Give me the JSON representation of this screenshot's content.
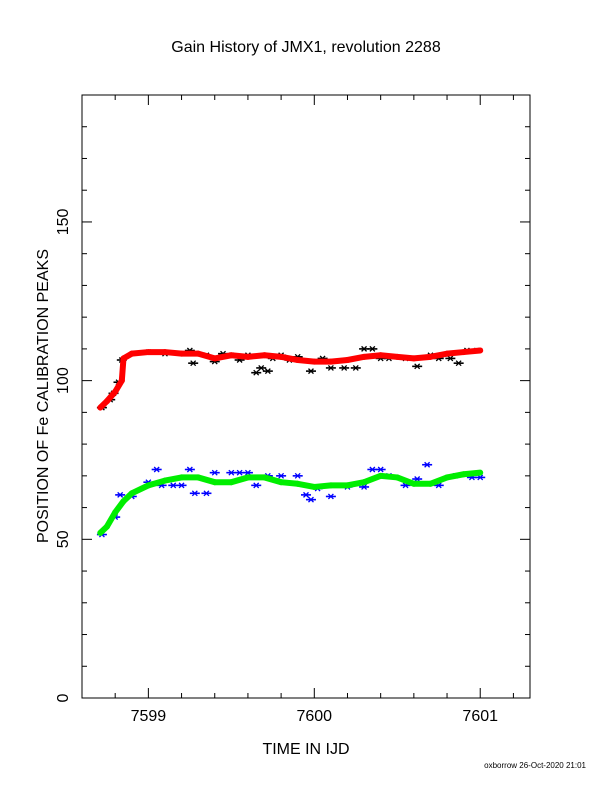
{
  "chart_data": {
    "type": "scatter",
    "title": "Gain History of JMX1, revolution 2288",
    "xlabel": "TIME IN IJD",
    "ylabel": "POSITION OF Fe CALIBRATION PEAKS",
    "xlim": [
      7598.6,
      7601.3
    ],
    "ylim": [
      0,
      190
    ],
    "x_ticks": [
      7599,
      7600,
      7601
    ],
    "x_tick_labels": [
      "7599",
      "7600",
      "7601"
    ],
    "y_ticks": [
      0,
      50,
      100,
      150
    ],
    "y_tick_labels": [
      "0",
      "50",
      "100",
      "150"
    ],
    "grid": false,
    "legend": "none",
    "series": [
      {
        "color": "#000000",
        "marker": "x",
        "points": [
          [
            7598.72,
            91.5
          ],
          [
            7598.77,
            94
          ],
          [
            7598.79,
            96
          ],
          [
            7598.82,
            99.5
          ],
          [
            7598.84,
            106.5
          ],
          [
            7599.0,
            109
          ],
          [
            7599.1,
            108.5
          ],
          [
            7599.25,
            109.5
          ],
          [
            7599.27,
            105.5
          ],
          [
            7599.35,
            108
          ],
          [
            7599.4,
            106
          ],
          [
            7599.45,
            108.5
          ],
          [
            7599.5,
            108
          ],
          [
            7599.55,
            106.5
          ],
          [
            7599.6,
            108
          ],
          [
            7599.65,
            102.5
          ],
          [
            7599.68,
            104
          ],
          [
            7599.72,
            103
          ],
          [
            7599.75,
            107
          ],
          [
            7599.8,
            108
          ],
          [
            7599.85,
            106.5
          ],
          [
            7599.9,
            107.5
          ],
          [
            7599.98,
            103
          ],
          [
            7600.05,
            107
          ],
          [
            7600.1,
            104
          ],
          [
            7600.18,
            104
          ],
          [
            7600.25,
            104
          ],
          [
            7600.3,
            110
          ],
          [
            7600.35,
            110
          ],
          [
            7600.4,
            107
          ],
          [
            7600.45,
            107
          ],
          [
            7600.55,
            107
          ],
          [
            7600.62,
            104.5
          ],
          [
            7600.7,
            108
          ],
          [
            7600.75,
            107
          ],
          [
            7600.82,
            107
          ],
          [
            7600.87,
            105.5
          ],
          [
            7600.92,
            109.5
          ],
          [
            7600.98,
            109.5
          ]
        ]
      },
      {
        "color": "#0000ff",
        "marker": "x",
        "points": [
          [
            7598.72,
            51.5
          ],
          [
            7598.8,
            57
          ],
          [
            7598.83,
            64
          ],
          [
            7598.9,
            63.5
          ],
          [
            7599.0,
            68
          ],
          [
            7599.05,
            72
          ],
          [
            7599.08,
            67
          ],
          [
            7599.15,
            67
          ],
          [
            7599.2,
            67
          ],
          [
            7599.25,
            72
          ],
          [
            7599.28,
            64.5
          ],
          [
            7599.35,
            64.5
          ],
          [
            7599.4,
            71
          ],
          [
            7599.5,
            71
          ],
          [
            7599.55,
            71
          ],
          [
            7599.6,
            71
          ],
          [
            7599.65,
            67
          ],
          [
            7599.72,
            70
          ],
          [
            7599.8,
            70
          ],
          [
            7599.9,
            70
          ],
          [
            7599.95,
            64
          ],
          [
            7599.98,
            62.5
          ],
          [
            7600.02,
            66
          ],
          [
            7600.1,
            63.5
          ],
          [
            7600.2,
            66.5
          ],
          [
            7600.3,
            66.5
          ],
          [
            7600.35,
            72
          ],
          [
            7600.4,
            72
          ],
          [
            7600.45,
            70
          ],
          [
            7600.55,
            67
          ],
          [
            7600.62,
            69
          ],
          [
            7600.68,
            73.5
          ],
          [
            7600.75,
            67
          ],
          [
            7600.85,
            70
          ],
          [
            7600.95,
            69.5
          ],
          [
            7601.0,
            69.5
          ]
        ]
      },
      {
        "color": "#ff0000",
        "marker": "line",
        "points": [
          [
            7598.71,
            91.5
          ],
          [
            7598.75,
            93.5
          ],
          [
            7598.8,
            96.5
          ],
          [
            7598.84,
            100
          ],
          [
            7598.85,
            107
          ],
          [
            7598.9,
            108.5
          ],
          [
            7599.0,
            109
          ],
          [
            7599.1,
            109
          ],
          [
            7599.2,
            108.5
          ],
          [
            7599.3,
            108.5
          ],
          [
            7599.4,
            107
          ],
          [
            7599.5,
            108
          ],
          [
            7599.6,
            107.5
          ],
          [
            7599.7,
            108
          ],
          [
            7599.8,
            107.5
          ],
          [
            7599.9,
            106.5
          ],
          [
            7600.0,
            106
          ],
          [
            7600.1,
            106
          ],
          [
            7600.2,
            106.5
          ],
          [
            7600.3,
            107.5
          ],
          [
            7600.4,
            108
          ],
          [
            7600.5,
            107.5
          ],
          [
            7600.6,
            107
          ],
          [
            7600.7,
            107.5
          ],
          [
            7600.8,
            108.5
          ],
          [
            7600.9,
            109
          ],
          [
            7601.0,
            109.5
          ]
        ]
      },
      {
        "color": "#00ee00",
        "marker": "line",
        "points": [
          [
            7598.71,
            52
          ],
          [
            7598.75,
            54
          ],
          [
            7598.8,
            58.5
          ],
          [
            7598.85,
            62
          ],
          [
            7598.9,
            64.5
          ],
          [
            7599.0,
            67
          ],
          [
            7599.1,
            68.5
          ],
          [
            7599.2,
            69.5
          ],
          [
            7599.3,
            69.5
          ],
          [
            7599.4,
            68
          ],
          [
            7599.5,
            68
          ],
          [
            7599.6,
            69.5
          ],
          [
            7599.7,
            69.5
          ],
          [
            7599.8,
            68
          ],
          [
            7599.9,
            67.5
          ],
          [
            7600.0,
            66.5
          ],
          [
            7600.1,
            67
          ],
          [
            7600.2,
            67
          ],
          [
            7600.3,
            68
          ],
          [
            7600.4,
            70
          ],
          [
            7600.5,
            69.5
          ],
          [
            7600.6,
            67.5
          ],
          [
            7600.7,
            67.5
          ],
          [
            7600.8,
            69.5
          ],
          [
            7600.9,
            70.5
          ],
          [
            7601.0,
            71
          ]
        ]
      }
    ]
  },
  "footer": {
    "stamp": "oxborrow 26-Oct-2020 21:01"
  }
}
